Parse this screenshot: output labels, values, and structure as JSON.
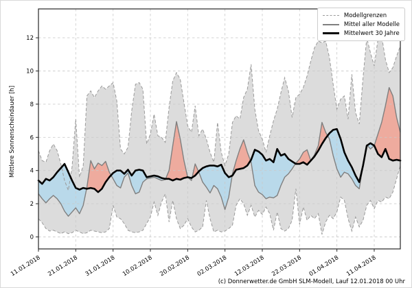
{
  "y_axis": {
    "label": "Mittlere Sonnenscheindauer [h]",
    "ticks": [
      0,
      2,
      4,
      6,
      8,
      10,
      12
    ]
  },
  "x_axis": {
    "tick_labels": [
      "11.01.2018",
      "21.01.2018",
      "31.01.2018",
      "10.02.2018",
      "20.02.2018",
      "02.03.2018",
      "12.03.2018",
      "22.03.2018",
      "01.04.2018",
      "11.04.2018"
    ],
    "tick_days": [
      0,
      10,
      20,
      30,
      40,
      50,
      60,
      70,
      80,
      90
    ]
  },
  "legend": {
    "items": [
      {
        "label": "Modellgrenzen",
        "style": "dashed-gray"
      },
      {
        "label": "Mittel aller Modelle",
        "style": "solid-gray"
      },
      {
        "label": "Mittelwert 30 Jahre",
        "style": "solid-black"
      }
    ]
  },
  "caption": "(c) Donnerwetter.de GmbH SLM-Modell, Lauf 12.01.2018 00 Uhr",
  "colors": {
    "envelope_fill": "#dcdcdc",
    "envelope_edge": "#999999",
    "model_mean_line": "#7f7f7f",
    "mean30_line": "#000000",
    "fill_model_below_mean30": "#b9d9ea",
    "fill_model_above_mean30": "#eeab9e",
    "grid": "#c9c9c9",
    "axis": "#262626"
  },
  "chart_data": {
    "type": "line",
    "title": "",
    "xlabel": "",
    "ylabel": "Mittlere Sonnenscheindauer [h]",
    "x_unit": "days (daily values)",
    "x_start_date": "11.01.2018",
    "x_end_date": "18.04.2018",
    "points": 98,
    "ylim": [
      -0.7,
      13.7
    ],
    "grid": true,
    "legend_position": "upper right",
    "fills": [
      {
        "between": [
          "Mittel aller Modelle",
          "Mittelwert 30 Jahre"
        ],
        "when": "model mean below 30y mean",
        "color": "#b9d9ea"
      },
      {
        "between": [
          "Mittel aller Modelle",
          "Mittelwert 30 Jahre"
        ],
        "when": "model mean above 30y mean",
        "color": "#eeab9e"
      },
      {
        "between": [
          "Modellgrenzen oben",
          "Modellgrenzen unten"
        ],
        "when": "always",
        "color": "#dcdcdc"
      }
    ],
    "series": [
      {
        "name": "Modellgrenzen (obere Grenze)",
        "style": "dashed",
        "color": "#999999",
        "values": [
          5.2,
          4.6,
          4.5,
          5.2,
          5.6,
          5.2,
          4.4,
          3.4,
          2.8,
          4.2,
          7.1,
          3.6,
          4.3,
          8.5,
          8.8,
          8.4,
          8.8,
          9.1,
          8.9,
          9.1,
          9.3,
          8.2,
          5.3,
          5.0,
          5.4,
          7.6,
          9.2,
          9.3,
          8.9,
          5.6,
          6.2,
          7.4,
          6.1,
          6.0,
          5.7,
          7.8,
          9.4,
          9.9,
          9.5,
          8.1,
          6.7,
          6.3,
          7.9,
          6.1,
          6.5,
          5.9,
          5.1,
          4.5,
          6.9,
          5.1,
          4.3,
          5.0,
          6.9,
          7.3,
          7.1,
          8.4,
          8.9,
          10.4,
          7.7,
          6.4,
          5.9,
          5.1,
          6.1,
          7.0,
          7.7,
          8.7,
          9.6,
          8.8,
          7.2,
          8.4,
          8.6,
          9.0,
          9.7,
          10.6,
          11.4,
          11.8,
          11.7,
          11.8,
          10.8,
          9.2,
          7.7,
          8.3,
          8.5,
          7.1,
          9.8,
          7.5,
          6.8,
          9.6,
          12.0,
          11.1,
          10.3,
          11.9,
          12.1,
          10.7,
          9.9,
          10.2,
          10.9,
          11.5
        ]
      },
      {
        "name": "Modellgrenzen (untere Grenze)",
        "style": "dashed",
        "color": "#999999",
        "values": [
          1.1,
          0.85,
          0.5,
          0.35,
          0.4,
          0.3,
          0.2,
          0.3,
          0.2,
          0.25,
          0.4,
          0.3,
          0.2,
          0.25,
          0.4,
          0.35,
          0.3,
          0.25,
          0.3,
          0.5,
          1.9,
          1.2,
          1.1,
          0.8,
          0.4,
          0.3,
          0.25,
          0.3,
          0.4,
          0.8,
          1.2,
          2.1,
          1.3,
          2.1,
          2.6,
          0.9,
          2.2,
          1.1,
          0.5,
          0.7,
          1.1,
          0.6,
          0.3,
          0.4,
          0.6,
          2.2,
          1.1,
          0.3,
          0.4,
          0.3,
          0.35,
          0.5,
          0.7,
          1.9,
          2.3,
          2.0,
          1.3,
          1.9,
          1.2,
          1.6,
          1.35,
          1.8,
          1.4,
          0.4,
          1.5,
          0.5,
          0.35,
          0.5,
          1.0,
          2.9,
          0.75,
          1.8,
          1.0,
          1.3,
          1.1,
          1.4,
          0.15,
          0.9,
          1.3,
          1.1,
          1.5,
          2.4,
          2.2,
          1.1,
          0.35,
          1.2,
          0.6,
          1.0,
          1.9,
          2.2,
          1.7,
          2.2,
          2.1,
          2.4,
          2.3,
          2.7,
          3.5,
          4.3
        ]
      },
      {
        "name": "Mittel aller Modelle",
        "style": "solid",
        "color": "#7f7f7f",
        "values": [
          2.6,
          2.3,
          2.05,
          2.3,
          2.5,
          2.3,
          2.0,
          1.55,
          1.25,
          1.5,
          1.75,
          1.4,
          1.9,
          3.0,
          4.6,
          4.1,
          4.45,
          4.3,
          4.55,
          3.9,
          3.5,
          3.1,
          2.95,
          3.6,
          3.85,
          3.1,
          2.6,
          2.7,
          3.3,
          3.5,
          3.55,
          3.6,
          3.5,
          3.4,
          3.45,
          4.0,
          5.5,
          6.95,
          5.9,
          4.6,
          3.6,
          3.4,
          4.4,
          3.9,
          3.3,
          3.0,
          2.65,
          3.1,
          2.9,
          2.4,
          1.65,
          2.4,
          3.8,
          4.6,
          5.3,
          5.85,
          5.1,
          4.5,
          3.1,
          2.7,
          2.55,
          2.3,
          2.4,
          2.35,
          2.5,
          3.1,
          3.6,
          3.8,
          4.1,
          4.45,
          4.7,
          5.1,
          5.25,
          4.6,
          4.95,
          5.5,
          6.9,
          6.3,
          5.9,
          4.9,
          4.1,
          3.6,
          3.9,
          3.8,
          3.5,
          3.1,
          2.9,
          4.3,
          5.55,
          5.3,
          5.5,
          6.2,
          6.9,
          7.9,
          9.0,
          8.5,
          7.2,
          6.3
        ]
      },
      {
        "name": "Mittelwert 30 Jahre",
        "style": "solid-bold",
        "color": "#000000",
        "values": [
          3.4,
          3.2,
          3.5,
          3.4,
          3.6,
          3.9,
          4.15,
          4.4,
          3.9,
          3.4,
          2.95,
          2.85,
          2.95,
          2.9,
          2.95,
          2.9,
          2.7,
          2.9,
          3.3,
          3.6,
          3.85,
          4.0,
          4.0,
          3.8,
          4.05,
          3.7,
          4.0,
          4.05,
          4.0,
          3.6,
          3.65,
          3.7,
          3.65,
          3.55,
          3.5,
          3.5,
          3.4,
          3.5,
          3.45,
          3.55,
          3.6,
          3.55,
          3.7,
          3.95,
          4.15,
          4.25,
          4.3,
          4.3,
          4.25,
          4.35,
          3.85,
          3.6,
          3.7,
          4.05,
          4.1,
          4.15,
          4.3,
          4.65,
          5.25,
          5.15,
          4.95,
          4.6,
          4.7,
          4.5,
          5.3,
          4.9,
          5.0,
          4.7,
          4.55,
          4.4,
          4.4,
          4.5,
          4.35,
          4.6,
          4.85,
          5.2,
          5.6,
          5.95,
          6.25,
          6.45,
          6.5,
          5.9,
          5.1,
          4.6,
          4.2,
          3.7,
          3.3,
          4.3,
          5.5,
          5.65,
          5.5,
          5.0,
          4.8,
          5.3,
          4.7,
          4.6,
          4.65,
          4.6
        ]
      }
    ]
  }
}
